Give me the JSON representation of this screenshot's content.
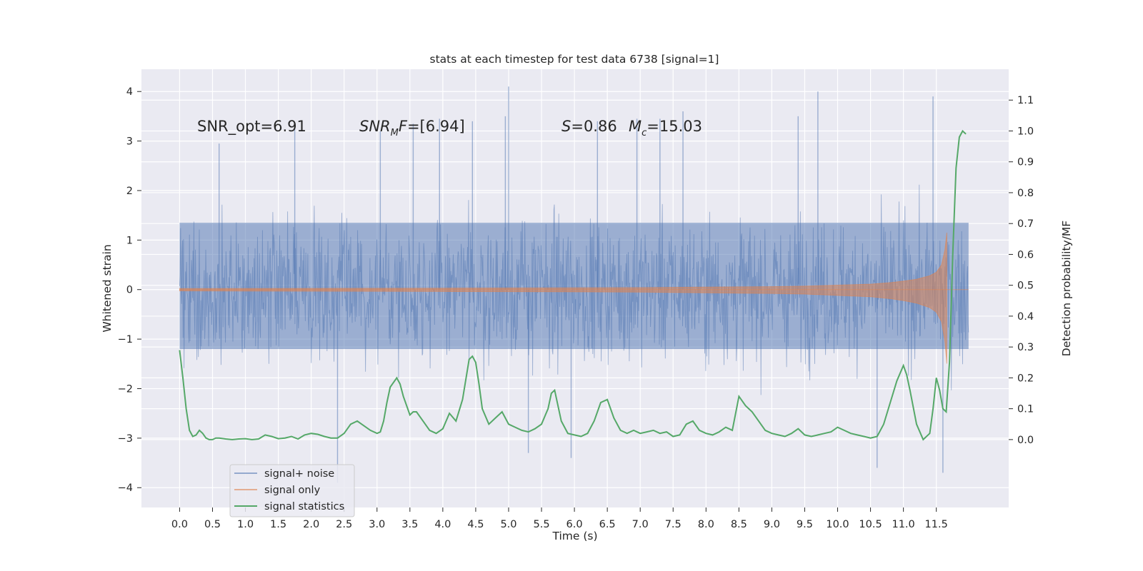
{
  "chart_data": {
    "type": "line",
    "title": "stats at each timestep for test data 6738 [signal=1]",
    "xlabel": "Time (s)",
    "ylabel_left": "Whitened strain",
    "ylabel_right": "Detection probability/MF",
    "xlim": [
      -0.58,
      12.6
    ],
    "ylim_left": [
      -4.4,
      4.45
    ],
    "ylim_right": [
      -0.22,
      1.2
    ],
    "xticks": [
      0.0,
      0.5,
      1.0,
      1.5,
      2.0,
      2.5,
      3.0,
      3.5,
      4.0,
      4.5,
      5.0,
      5.5,
      6.0,
      6.5,
      7.0,
      7.5,
      8.0,
      8.5,
      9.0,
      9.5,
      10.0,
      10.5,
      11.0,
      11.5
    ],
    "xtick_labels": [
      "0.0",
      "0.5",
      "1.0",
      "1.5",
      "2.0",
      "2.5",
      "3.0",
      "3.5",
      "4.0",
      "4.5",
      "5.0",
      "5.5",
      "6.0",
      "6.5",
      "7.0",
      "7.5",
      "8.0",
      "8.5",
      "9.0",
      "9.5",
      "10.0",
      "10.5",
      "11.0",
      "11.5"
    ],
    "yticks_left": [
      4,
      3,
      2,
      1,
      0,
      -1,
      -2,
      -3,
      -4
    ],
    "ytick_labels_left": [
      "4",
      "3",
      "2",
      "1",
      "0",
      "−1",
      "−2",
      "−3",
      "−4"
    ],
    "yticks_right": [
      1.1,
      1.0,
      0.9,
      0.8,
      0.7,
      0.6,
      0.5,
      0.4,
      0.3,
      0.2,
      0.1,
      0.0
    ],
    "ytick_labels_right": [
      "1.1",
      "1.0",
      "0.9",
      "0.8",
      "0.7",
      "0.6",
      "0.5",
      "0.4",
      "0.3",
      "0.2",
      "0.1",
      "0.0"
    ],
    "grid": true,
    "legend_position": "lower-left",
    "annotations": {
      "snr_opt": "SNR_opt=6.91",
      "snr_mf_label": "SNR",
      "snr_mf_sub": "M",
      "snr_mf_mid": "F",
      "snr_mf_value": "=[6.94]",
      "s_label": "S",
      "s_value": "=0.86",
      "mc_label": "M",
      "mc_sub": "c",
      "mc_value": "=15.03"
    },
    "series": [
      {
        "name": "signal+ noise",
        "color": "#4c72b0",
        "axis": "left",
        "kind": "noise-band",
        "x_range": [
          0.0,
          11.99
        ],
        "dense_band": [
          -1.2,
          1.35
        ],
        "spike_extremes": [
          [
            0.6,
            2.95
          ],
          [
            1.75,
            3.25
          ],
          [
            2.4,
            -3.9
          ],
          [
            3.05,
            3.2
          ],
          [
            3.55,
            3.35
          ],
          [
            3.95,
            3.45
          ],
          [
            4.45,
            3.4
          ],
          [
            4.95,
            3.5
          ],
          [
            5.0,
            4.1
          ],
          [
            5.3,
            -3.3
          ],
          [
            5.95,
            -3.4
          ],
          [
            6.35,
            3.4
          ],
          [
            6.95,
            3.45
          ],
          [
            7.3,
            3.45
          ],
          [
            7.65,
            3.6
          ],
          [
            9.4,
            3.5
          ],
          [
            9.7,
            4.0
          ],
          [
            10.6,
            -3.6
          ],
          [
            11.45,
            3.9
          ],
          [
            11.6,
            -3.7
          ]
        ]
      },
      {
        "name": "signal only",
        "color": "#dd8452",
        "axis": "left",
        "kind": "chirp",
        "x": [
          0.0,
          2.0,
          4.0,
          6.0,
          7.0,
          8.0,
          8.5,
          9.0,
          9.5,
          10.0,
          10.5,
          10.8,
          11.0,
          11.2,
          11.4,
          11.5,
          11.58,
          11.63,
          11.66
        ],
        "envelope": [
          0.02,
          0.025,
          0.03,
          0.035,
          0.04,
          0.05,
          0.055,
          0.06,
          0.07,
          0.09,
          0.11,
          0.14,
          0.17,
          0.21,
          0.28,
          0.35,
          0.5,
          0.8,
          1.15
        ]
      },
      {
        "name": "signal statistics",
        "color": "#55a868",
        "axis": "right",
        "kind": "line",
        "x": [
          0.0,
          0.05,
          0.1,
          0.15,
          0.2,
          0.25,
          0.3,
          0.35,
          0.4,
          0.45,
          0.5,
          0.55,
          0.6,
          0.7,
          0.8,
          0.9,
          1.0,
          1.1,
          1.2,
          1.3,
          1.4,
          1.5,
          1.6,
          1.7,
          1.8,
          1.9,
          2.0,
          2.1,
          2.2,
          2.3,
          2.4,
          2.5,
          2.6,
          2.7,
          2.8,
          2.9,
          3.0,
          3.05,
          3.1,
          3.15,
          3.2,
          3.3,
          3.35,
          3.4,
          3.5,
          3.55,
          3.6,
          3.7,
          3.8,
          3.9,
          4.0,
          4.05,
          4.1,
          4.2,
          4.3,
          4.4,
          4.45,
          4.5,
          4.55,
          4.6,
          4.7,
          4.8,
          4.9,
          5.0,
          5.1,
          5.2,
          5.3,
          5.4,
          5.5,
          5.6,
          5.65,
          5.7,
          5.8,
          5.9,
          6.0,
          6.1,
          6.2,
          6.3,
          6.4,
          6.5,
          6.6,
          6.7,
          6.8,
          6.9,
          7.0,
          7.1,
          7.2,
          7.3,
          7.4,
          7.5,
          7.6,
          7.7,
          7.8,
          7.9,
          8.0,
          8.1,
          8.2,
          8.3,
          8.4,
          8.5,
          8.6,
          8.7,
          8.8,
          8.9,
          9.0,
          9.1,
          9.2,
          9.3,
          9.4,
          9.5,
          9.6,
          9.7,
          9.8,
          9.9,
          10.0,
          10.1,
          10.2,
          10.3,
          10.4,
          10.5,
          10.6,
          10.7,
          10.8,
          10.9,
          11.0,
          11.05,
          11.1,
          11.2,
          11.3,
          11.4,
          11.45,
          11.5,
          11.55,
          11.6,
          11.65,
          11.7,
          11.75,
          11.8,
          11.85,
          11.9,
          11.95
        ],
        "y": [
          0.29,
          0.2,
          0.1,
          0.03,
          0.01,
          0.015,
          0.03,
          0.02,
          0.005,
          0.0,
          0.0,
          0.005,
          0.005,
          0.002,
          0.0,
          0.002,
          0.003,
          0.0,
          0.002,
          0.015,
          0.01,
          0.003,
          0.005,
          0.01,
          0.002,
          0.015,
          0.02,
          0.017,
          0.01,
          0.005,
          0.005,
          0.02,
          0.05,
          0.06,
          0.045,
          0.03,
          0.02,
          0.025,
          0.06,
          0.12,
          0.17,
          0.2,
          0.18,
          0.14,
          0.08,
          0.09,
          0.09,
          0.06,
          0.03,
          0.02,
          0.035,
          0.06,
          0.085,
          0.06,
          0.13,
          0.26,
          0.27,
          0.25,
          0.18,
          0.1,
          0.05,
          0.07,
          0.09,
          0.05,
          0.04,
          0.03,
          0.025,
          0.035,
          0.05,
          0.1,
          0.15,
          0.16,
          0.06,
          0.02,
          0.015,
          0.01,
          0.02,
          0.06,
          0.12,
          0.13,
          0.07,
          0.03,
          0.02,
          0.03,
          0.02,
          0.025,
          0.03,
          0.02,
          0.025,
          0.01,
          0.015,
          0.05,
          0.06,
          0.03,
          0.02,
          0.015,
          0.025,
          0.04,
          0.03,
          0.14,
          0.11,
          0.09,
          0.06,
          0.03,
          0.02,
          0.015,
          0.01,
          0.02,
          0.035,
          0.015,
          0.01,
          0.015,
          0.02,
          0.025,
          0.04,
          0.03,
          0.02,
          0.015,
          0.01,
          0.005,
          0.01,
          0.05,
          0.12,
          0.19,
          0.24,
          0.21,
          0.16,
          0.05,
          0.0,
          0.02,
          0.1,
          0.2,
          0.16,
          0.1,
          0.09,
          0.25,
          0.6,
          0.88,
          0.98,
          1.0,
          0.99
        ]
      }
    ]
  }
}
